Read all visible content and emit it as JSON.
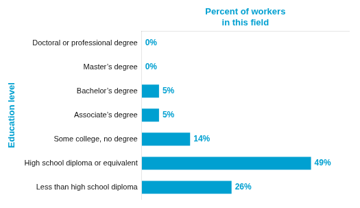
{
  "chart_data": {
    "type": "bar",
    "orientation": "horizontal",
    "categories": [
      "Doctoral or professional degree",
      "Master’s degree",
      "Bachelor’s degree",
      "Associate’s degree",
      "Some college, no degree",
      "High school diploma or equivalent",
      "Less than high school diploma"
    ],
    "values": [
      0,
      0,
      5,
      5,
      14,
      49,
      26
    ],
    "value_labels": [
      "0%",
      "0%",
      "5%",
      "5%",
      "14%",
      "49%",
      "26%"
    ],
    "data_labels": true,
    "color": "#00a0d1",
    "xlim": [
      0,
      60
    ],
    "xlabel": "Percent of workers\nin this field",
    "ylabel": "Education level",
    "grid": false,
    "tick_labels": "y"
  }
}
